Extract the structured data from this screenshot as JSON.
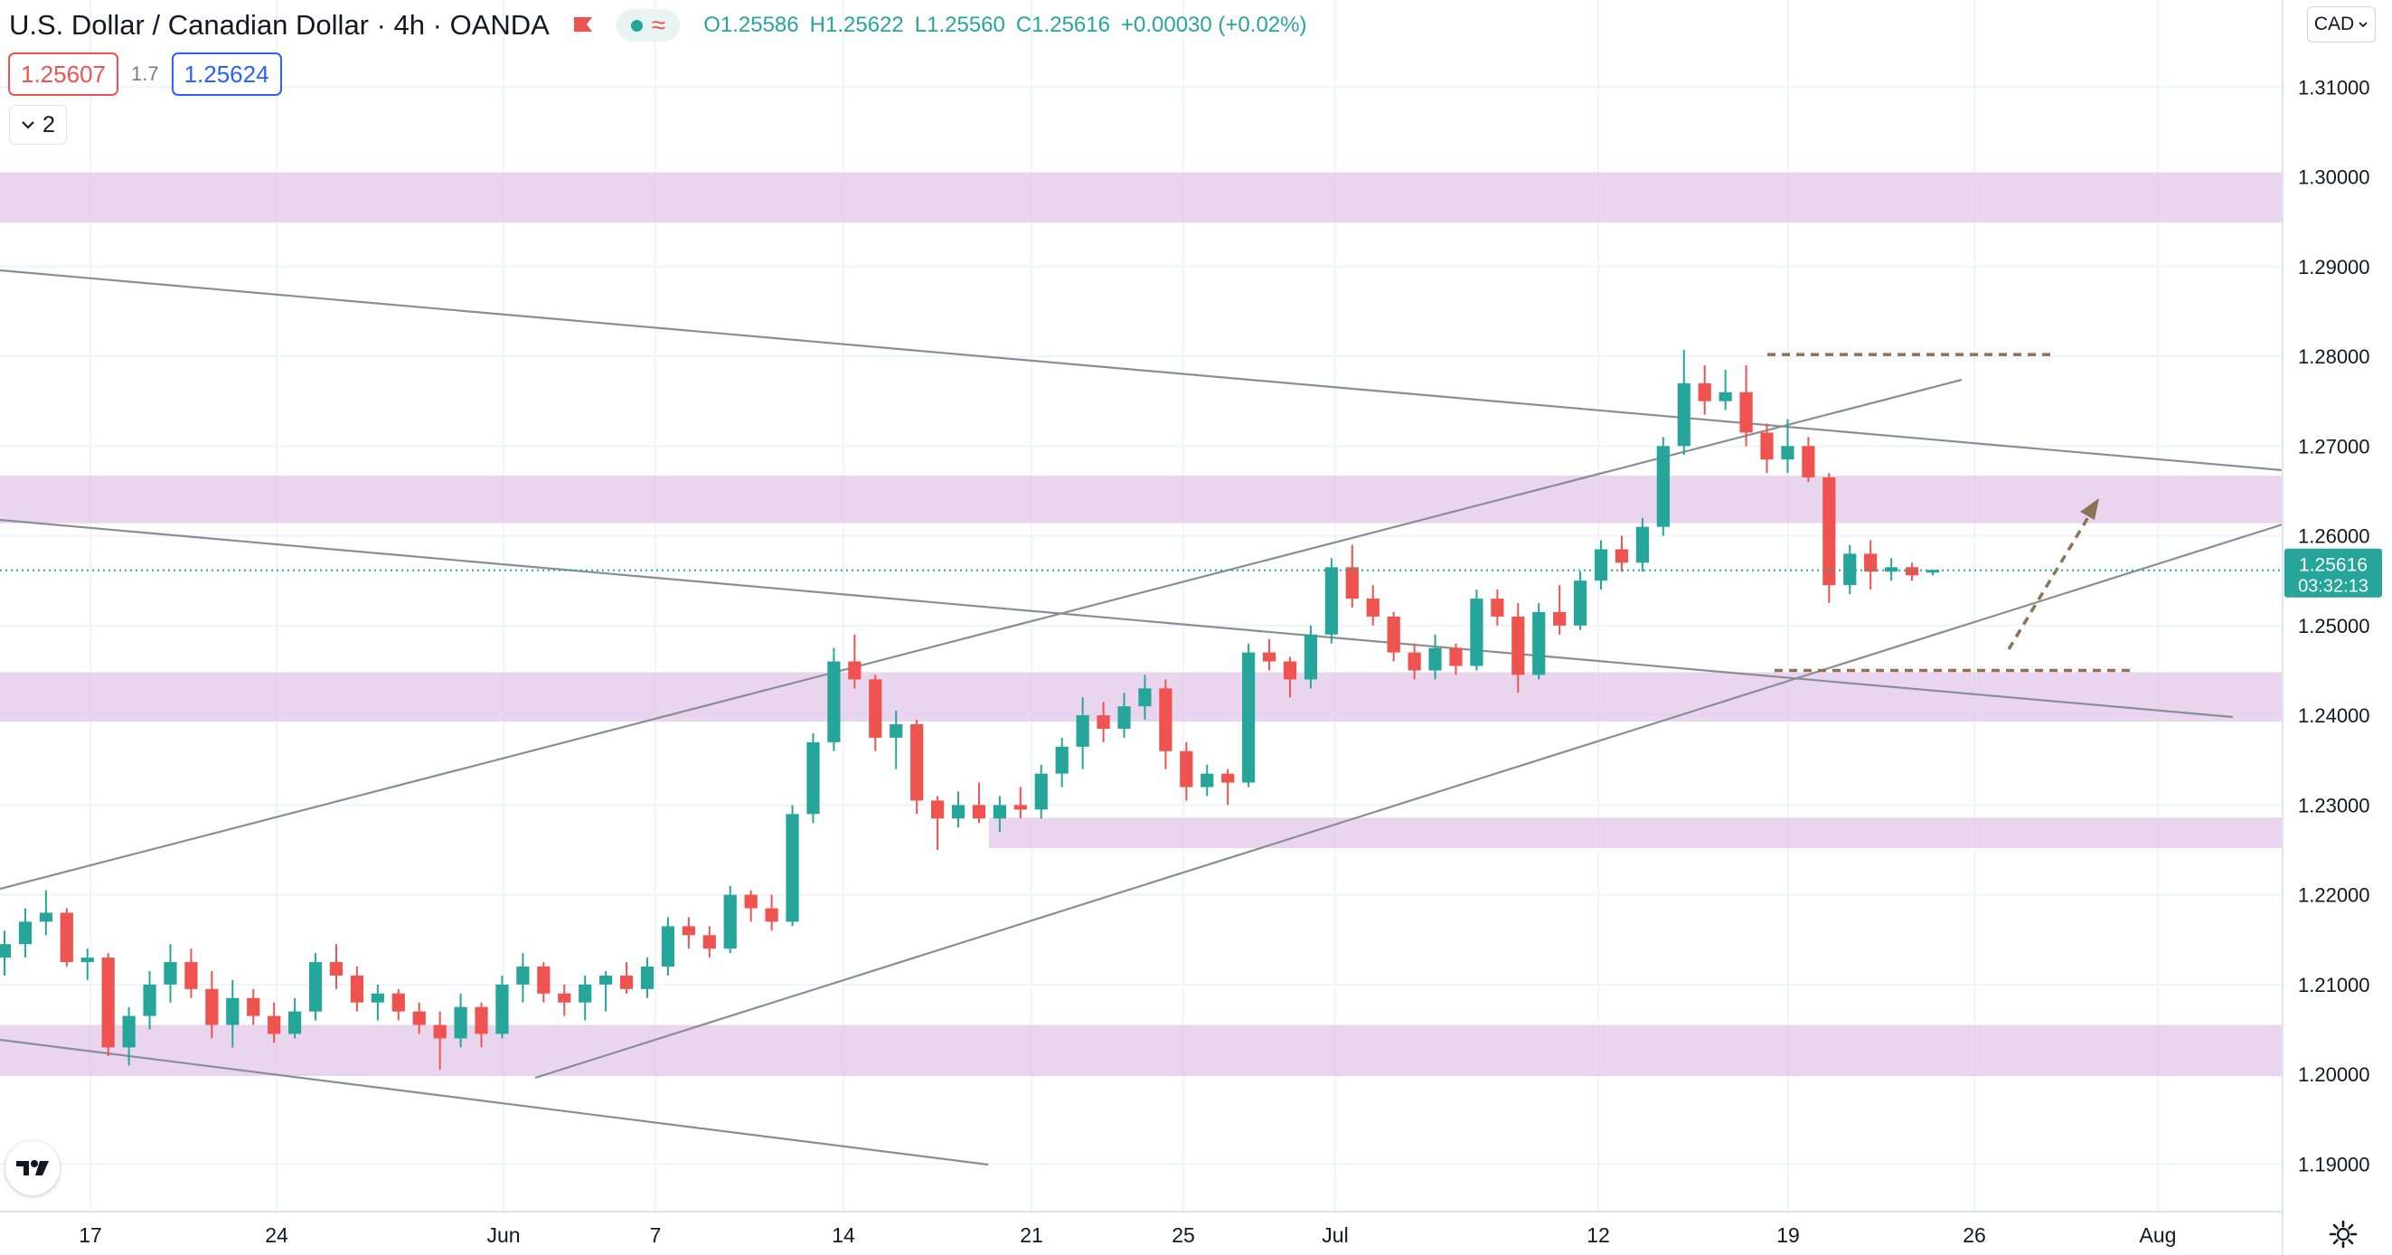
{
  "header": {
    "symbol_title": "U.S. Dollar / Canadian Dollar · 4h · OANDA",
    "ohlc": [
      {
        "label": "O",
        "value": "1.25586"
      },
      {
        "label": "H",
        "value": "1.25622"
      },
      {
        "label": "L",
        "value": "1.25560"
      },
      {
        "label": "C",
        "value": "1.25616"
      }
    ],
    "change": "+0.00030 (+0.02%)",
    "sell_price": "1.25607",
    "spread": "1.7",
    "buy_price": "1.25624",
    "indicators_count": "2",
    "currency": "CAD"
  },
  "colors": {
    "up": "#26a69a",
    "down": "#ef5350",
    "zone": "#e1c6e8",
    "trendline": "#8a8d94",
    "annotation": "#8b7355",
    "last_price_bg": "#26a69a"
  },
  "icons": {
    "status": "market-open-dot",
    "wave": "wave-icon",
    "flag": "flag-icon",
    "logo": "tradingview-logo",
    "settings": "gear-icon"
  },
  "chart_data": {
    "type": "candlestick",
    "title": "U.S. Dollar / Canadian Dollar · 4h · OANDA",
    "y_ticks": [
      "1.31000",
      "1.30000",
      "1.29000",
      "1.28000",
      "1.27000",
      "1.26000",
      "1.25000",
      "1.24000",
      "1.23000",
      "1.22000",
      "1.21000",
      "1.20000",
      "1.19000"
    ],
    "x_ticks": [
      "17",
      "24",
      "Jun",
      "7",
      "14",
      "21",
      "25",
      "Jul",
      "12",
      "19",
      "26",
      "Aug"
    ],
    "ylim": [
      1.1847,
      1.3197
    ],
    "last_price": {
      "value": "1.25616",
      "countdown": "03:32:13"
    },
    "zones": [
      {
        "from": 1.2949,
        "to": 1.3005
      },
      {
        "from": 1.2614,
        "to": 1.2667
      },
      {
        "from": 1.2393,
        "to": 1.2448
      },
      {
        "from": 1.2252,
        "to": 1.2286
      },
      {
        "from": 1.1998,
        "to": 1.2055
      }
    ],
    "trendlines": [
      {
        "name": "upper-channel",
        "from": [
          "May 14",
          1.2892
        ],
        "to": [
          "Jul 30",
          1.266
        ]
      },
      {
        "name": "middle-channel",
        "from": [
          "May 14",
          1.2615
        ],
        "to": [
          "Jul 29",
          1.2382
        ]
      },
      {
        "name": "lower-channel",
        "from": [
          "May 14",
          1.2024
        ],
        "to": [
          "Jun 16",
          1.1882
        ]
      },
      {
        "name": "rising-top",
        "from": [
          "May 14",
          1.2183
        ],
        "to": [
          "Jul 25",
          1.2761
        ]
      },
      {
        "name": "rising-bottom",
        "from": [
          "Jun 3",
          1.1985
        ],
        "to": [
          "Jul 30",
          1.2602
        ]
      }
    ],
    "annotations": [
      {
        "type": "dashed-level",
        "value": 1.2802,
        "from": "Jul 18",
        "to": "Jul 25"
      },
      {
        "type": "dashed-level",
        "value": 1.245,
        "from": "Jul 18",
        "to": "Jul 29"
      },
      {
        "type": "dashed-arrow",
        "from": [
          "Jul 26",
          1.2455
        ],
        "to": [
          "Jul 28",
          1.2629
        ]
      }
    ],
    "candles": [
      {
        "x": "May 13",
        "o": 1.213,
        "h": 1.216,
        "l": 1.211,
        "c": 1.2145
      },
      {
        "x": "May 14",
        "o": 1.2145,
        "h": 1.2185,
        "l": 1.213,
        "c": 1.217
      },
      {
        "x": "May 15",
        "o": 1.217,
        "h": 1.2205,
        "l": 1.2155,
        "c": 1.218
      },
      {
        "x": "May 16",
        "o": 1.218,
        "h": 1.2185,
        "l": 1.212,
        "c": 1.2125
      },
      {
        "x": "May 17",
        "o": 1.2125,
        "h": 1.214,
        "l": 1.2105,
        "c": 1.213
      },
      {
        "x": "May 18",
        "o": 1.213,
        "h": 1.2135,
        "l": 1.202,
        "c": 1.203
      },
      {
        "x": "May 19",
        "o": 1.203,
        "h": 1.2075,
        "l": 1.201,
        "c": 1.2065
      },
      {
        "x": "May 20",
        "o": 1.2065,
        "h": 1.2115,
        "l": 1.205,
        "c": 1.21
      },
      {
        "x": "May 21",
        "o": 1.21,
        "h": 1.2145,
        "l": 1.208,
        "c": 1.2125
      },
      {
        "x": "May 22",
        "o": 1.2125,
        "h": 1.214,
        "l": 1.2085,
        "c": 1.2095
      },
      {
        "x": "May 23",
        "o": 1.2095,
        "h": 1.2115,
        "l": 1.204,
        "c": 1.2055
      },
      {
        "x": "May 24",
        "o": 1.2055,
        "h": 1.2105,
        "l": 1.203,
        "c": 1.2085
      },
      {
        "x": "May 25",
        "o": 1.2085,
        "h": 1.2095,
        "l": 1.2055,
        "c": 1.2065
      },
      {
        "x": "May 26",
        "o": 1.2065,
        "h": 1.208,
        "l": 1.2035,
        "c": 1.2045
      },
      {
        "x": "May 27",
        "o": 1.2045,
        "h": 1.2085,
        "l": 1.204,
        "c": 1.207
      },
      {
        "x": "May 28",
        "o": 1.207,
        "h": 1.2135,
        "l": 1.206,
        "c": 1.2125
      },
      {
        "x": "May 29",
        "o": 1.2125,
        "h": 1.2145,
        "l": 1.2095,
        "c": 1.211
      },
      {
        "x": "May 30",
        "o": 1.211,
        "h": 1.212,
        "l": 1.207,
        "c": 1.208
      },
      {
        "x": "May 31",
        "o": 1.208,
        "h": 1.21,
        "l": 1.206,
        "c": 1.209
      },
      {
        "x": "Jun 1",
        "o": 1.209,
        "h": 1.2095,
        "l": 1.206,
        "c": 1.207
      },
      {
        "x": "Jun 2",
        "o": 1.207,
        "h": 1.208,
        "l": 1.2045,
        "c": 1.2055
      },
      {
        "x": "Jun 3",
        "o": 1.2055,
        "h": 1.207,
        "l": 1.2005,
        "c": 1.204
      },
      {
        "x": "Jun 4",
        "o": 1.204,
        "h": 1.209,
        "l": 1.203,
        "c": 1.2075
      },
      {
        "x": "Jun 5",
        "o": 1.2075,
        "h": 1.208,
        "l": 1.203,
        "c": 1.2045
      },
      {
        "x": "Jun 6",
        "o": 1.2045,
        "h": 1.211,
        "l": 1.204,
        "c": 1.21
      },
      {
        "x": "Jun 7",
        "o": 1.21,
        "h": 1.2135,
        "l": 1.208,
        "c": 1.212
      },
      {
        "x": "Jun 8",
        "o": 1.212,
        "h": 1.2125,
        "l": 1.208,
        "c": 1.209
      },
      {
        "x": "Jun 9",
        "o": 1.209,
        "h": 1.21,
        "l": 1.2065,
        "c": 1.208
      },
      {
        "x": "Jun 10",
        "o": 1.208,
        "h": 1.211,
        "l": 1.206,
        "c": 1.21
      },
      {
        "x": "Jun 11",
        "o": 1.21,
        "h": 1.2115,
        "l": 1.207,
        "c": 1.211
      },
      {
        "x": "Jun 12",
        "o": 1.211,
        "h": 1.2125,
        "l": 1.209,
        "c": 1.2095
      },
      {
        "x": "Jun 13",
        "o": 1.2095,
        "h": 1.213,
        "l": 1.2085,
        "c": 1.212
      },
      {
        "x": "Jun 14",
        "o": 1.212,
        "h": 1.2175,
        "l": 1.211,
        "c": 1.2165
      },
      {
        "x": "Jun 15",
        "o": 1.2165,
        "h": 1.2175,
        "l": 1.214,
        "c": 1.2155
      },
      {
        "x": "Jun 16",
        "o": 1.2155,
        "h": 1.2165,
        "l": 1.213,
        "c": 1.214
      },
      {
        "x": "Jun 17",
        "o": 1.214,
        "h": 1.221,
        "l": 1.2135,
        "c": 1.22
      },
      {
        "x": "Jun 18",
        "o": 1.22,
        "h": 1.2205,
        "l": 1.217,
        "c": 1.2185
      },
      {
        "x": "Jun 19",
        "o": 1.2185,
        "h": 1.22,
        "l": 1.216,
        "c": 1.217
      },
      {
        "x": "Jun 19b",
        "o": 1.217,
        "h": 1.23,
        "l": 1.2165,
        "c": 1.229
      },
      {
        "x": "Jun 20",
        "o": 1.229,
        "h": 1.238,
        "l": 1.228,
        "c": 1.237
      },
      {
        "x": "Jun 20b",
        "o": 1.237,
        "h": 1.2475,
        "l": 1.236,
        "c": 1.246
      },
      {
        "x": "Jun 21",
        "o": 1.246,
        "h": 1.249,
        "l": 1.243,
        "c": 1.244
      },
      {
        "x": "Jun 22",
        "o": 1.244,
        "h": 1.2445,
        "l": 1.236,
        "c": 1.2375
      },
      {
        "x": "Jun 23",
        "o": 1.2375,
        "h": 1.2405,
        "l": 1.234,
        "c": 1.239
      },
      {
        "x": "Jun 23b",
        "o": 1.239,
        "h": 1.2395,
        "l": 1.229,
        "c": 1.2305
      },
      {
        "x": "Jun 24",
        "o": 1.2305,
        "h": 1.231,
        "l": 1.225,
        "c": 1.2285
      },
      {
        "x": "Jun 24b",
        "o": 1.2285,
        "h": 1.2315,
        "l": 1.2275,
        "c": 1.23
      },
      {
        "x": "Jun 25",
        "o": 1.23,
        "h": 1.2325,
        "l": 1.228,
        "c": 1.2285
      },
      {
        "x": "Jun 26",
        "o": 1.2285,
        "h": 1.231,
        "l": 1.227,
        "c": 1.23
      },
      {
        "x": "Jun 27",
        "o": 1.23,
        "h": 1.232,
        "l": 1.2285,
        "c": 1.2295
      },
      {
        "x": "Jun 28",
        "o": 1.2295,
        "h": 1.2345,
        "l": 1.2285,
        "c": 1.2335
      },
      {
        "x": "Jun 29",
        "o": 1.2335,
        "h": 1.2375,
        "l": 1.232,
        "c": 1.2365
      },
      {
        "x": "Jun 30",
        "o": 1.2365,
        "h": 1.242,
        "l": 1.234,
        "c": 1.24
      },
      {
        "x": "Jun 30b",
        "o": 1.24,
        "h": 1.2415,
        "l": 1.237,
        "c": 1.2385
      },
      {
        "x": "Jul 1",
        "o": 1.2385,
        "h": 1.2425,
        "l": 1.2375,
        "c": 1.241
      },
      {
        "x": "Jul 2",
        "o": 1.241,
        "h": 1.2445,
        "l": 1.2395,
        "c": 1.243
      },
      {
        "x": "Jul 2b",
        "o": 1.243,
        "h": 1.244,
        "l": 1.234,
        "c": 1.236
      },
      {
        "x": "Jul 4",
        "o": 1.236,
        "h": 1.237,
        "l": 1.2305,
        "c": 1.232
      },
      {
        "x": "Jul 5",
        "o": 1.232,
        "h": 1.2345,
        "l": 1.231,
        "c": 1.2335
      },
      {
        "x": "Jul 6",
        "o": 1.2335,
        "h": 1.234,
        "l": 1.23,
        "c": 1.2325
      },
      {
        "x": "Jul 6b",
        "o": 1.2325,
        "h": 1.248,
        "l": 1.232,
        "c": 1.247
      },
      {
        "x": "Jul 7",
        "o": 1.247,
        "h": 1.2485,
        "l": 1.245,
        "c": 1.246
      },
      {
        "x": "Jul 8",
        "o": 1.246,
        "h": 1.2465,
        "l": 1.242,
        "c": 1.244
      },
      {
        "x": "Jul 8b",
        "o": 1.244,
        "h": 1.25,
        "l": 1.243,
        "c": 1.249
      },
      {
        "x": "Jul 9",
        "o": 1.249,
        "h": 1.2575,
        "l": 1.248,
        "c": 1.2565
      },
      {
        "x": "Jul 9b",
        "o": 1.2565,
        "h": 1.259,
        "l": 1.252,
        "c": 1.253
      },
      {
        "x": "Jul 10",
        "o": 1.253,
        "h": 1.2545,
        "l": 1.25,
        "c": 1.251
      },
      {
        "x": "Jul 11",
        "o": 1.251,
        "h": 1.2515,
        "l": 1.246,
        "c": 1.247
      },
      {
        "x": "Jul 12",
        "o": 1.247,
        "h": 1.248,
        "l": 1.244,
        "c": 1.245
      },
      {
        "x": "Jul 12b",
        "o": 1.245,
        "h": 1.249,
        "l": 1.244,
        "c": 1.2475
      },
      {
        "x": "Jul 13",
        "o": 1.2475,
        "h": 1.248,
        "l": 1.2445,
        "c": 1.2455
      },
      {
        "x": "Jul 14",
        "o": 1.2455,
        "h": 1.254,
        "l": 1.245,
        "c": 1.253
      },
      {
        "x": "Jul 14b",
        "o": 1.253,
        "h": 1.254,
        "l": 1.25,
        "c": 1.251
      },
      {
        "x": "Jul 15",
        "o": 1.251,
        "h": 1.2525,
        "l": 1.2425,
        "c": 1.2445
      },
      {
        "x": "Jul 15b",
        "o": 1.2445,
        "h": 1.2525,
        "l": 1.244,
        "c": 1.2515
      },
      {
        "x": "Jul 16",
        "o": 1.2515,
        "h": 1.2545,
        "l": 1.249,
        "c": 1.25
      },
      {
        "x": "Jul 16b",
        "o": 1.25,
        "h": 1.256,
        "l": 1.2495,
        "c": 1.255
      },
      {
        "x": "Jul 17",
        "o": 1.255,
        "h": 1.2595,
        "l": 1.254,
        "c": 1.2585
      },
      {
        "x": "Jul 18",
        "o": 1.2585,
        "h": 1.26,
        "l": 1.256,
        "c": 1.257
      },
      {
        "x": "Jul 18b",
        "o": 1.257,
        "h": 1.262,
        "l": 1.256,
        "c": 1.261
      },
      {
        "x": "Jul 19",
        "o": 1.261,
        "h": 1.271,
        "l": 1.26,
        "c": 1.27
      },
      {
        "x": "Jul 19b",
        "o": 1.27,
        "h": 1.2807,
        "l": 1.269,
        "c": 1.277
      },
      {
        "x": "Jul 20",
        "o": 1.277,
        "h": 1.279,
        "l": 1.2735,
        "c": 1.275
      },
      {
        "x": "Jul 20b",
        "o": 1.275,
        "h": 1.2785,
        "l": 1.274,
        "c": 1.276
      },
      {
        "x": "Jul 21",
        "o": 1.276,
        "h": 1.279,
        "l": 1.27,
        "c": 1.2715
      },
      {
        "x": "Jul 21b",
        "o": 1.2715,
        "h": 1.2725,
        "l": 1.267,
        "c": 1.2685
      },
      {
        "x": "Jul 22",
        "o": 1.2685,
        "h": 1.273,
        "l": 1.267,
        "c": 1.27
      },
      {
        "x": "Jul 22b",
        "o": 1.27,
        "h": 1.271,
        "l": 1.266,
        "c": 1.2665
      },
      {
        "x": "Jul 23",
        "o": 1.2665,
        "h": 1.267,
        "l": 1.2525,
        "c": 1.2545
      },
      {
        "x": "Jul 23b",
        "o": 1.2545,
        "h": 1.259,
        "l": 1.2535,
        "c": 1.258
      },
      {
        "x": "Jul 24",
        "o": 1.258,
        "h": 1.2595,
        "l": 1.254,
        "c": 1.256
      },
      {
        "x": "Jul 24b",
        "o": 1.256,
        "h": 1.2575,
        "l": 1.255,
        "c": 1.2565
      },
      {
        "x": "Jul 25",
        "o": 1.2565,
        "h": 1.257,
        "l": 1.255,
        "c": 1.2556
      },
      {
        "x": "Jul 25b",
        "o": 1.2559,
        "h": 1.2562,
        "l": 1.2556,
        "c": 1.2562
      }
    ]
  }
}
